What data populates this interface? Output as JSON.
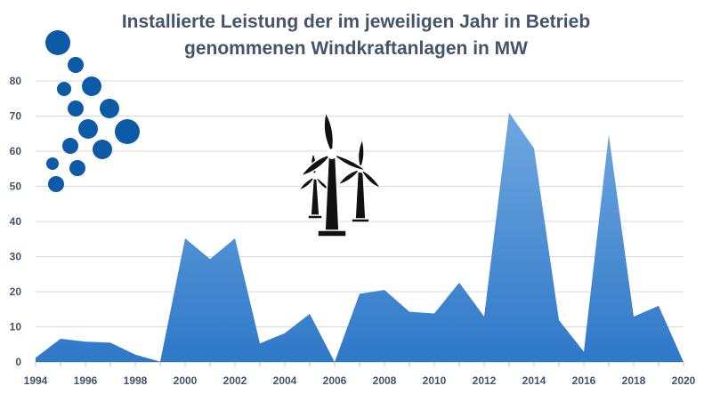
{
  "chart_data": {
    "type": "area",
    "title": "Installierte Leistung der im jeweiligen Jahr in Betrieb genommenen Windkraftanlagen in MW",
    "title_lines": [
      "Installierte Leistung der im jeweiligen Jahr in Betrieb",
      "genommenen Windkraftanlagen in MW"
    ],
    "xlabel": "",
    "ylabel": "",
    "x": [
      1994,
      1995,
      1996,
      1997,
      1998,
      1999,
      2000,
      2001,
      2002,
      2003,
      2004,
      2005,
      2006,
      2007,
      2008,
      2009,
      2010,
      2011,
      2012,
      2013,
      2014,
      2015,
      2016,
      2017,
      2018,
      2019,
      2020
    ],
    "series": [
      {
        "values": [
          1.2,
          6.6,
          5.8,
          5.5,
          2.1,
          0.1,
          35.2,
          29.3,
          35.2,
          5.3,
          8.2,
          13.7,
          0,
          19.4,
          20.5,
          14.3,
          13.8,
          22.6,
          12.9,
          71,
          60.8,
          11.9,
          2.9,
          64.7,
          12.9,
          16,
          0
        ]
      }
    ],
    "xticks": [
      "1994",
      "1996",
      "1998",
      "2000",
      "2002",
      "2004",
      "2006",
      "2008",
      "2010",
      "2012",
      "2014",
      "2016",
      "2018",
      "2020"
    ],
    "yticks": [
      "0",
      "10",
      "20",
      "30",
      "40",
      "50",
      "60",
      "70",
      "80"
    ],
    "xlim": [
      1994,
      2020
    ],
    "ylim": [
      0,
      80
    ],
    "grid": true,
    "colors": {
      "area_top": "#6fa8e0",
      "area_bottom": "#2f78c8",
      "grid": "#d9d9d9",
      "text": "#44546a",
      "bubbles": "#0d5aa7"
    },
    "decorations": [
      "bubbles-icon",
      "wind-turbines-icon"
    ]
  }
}
